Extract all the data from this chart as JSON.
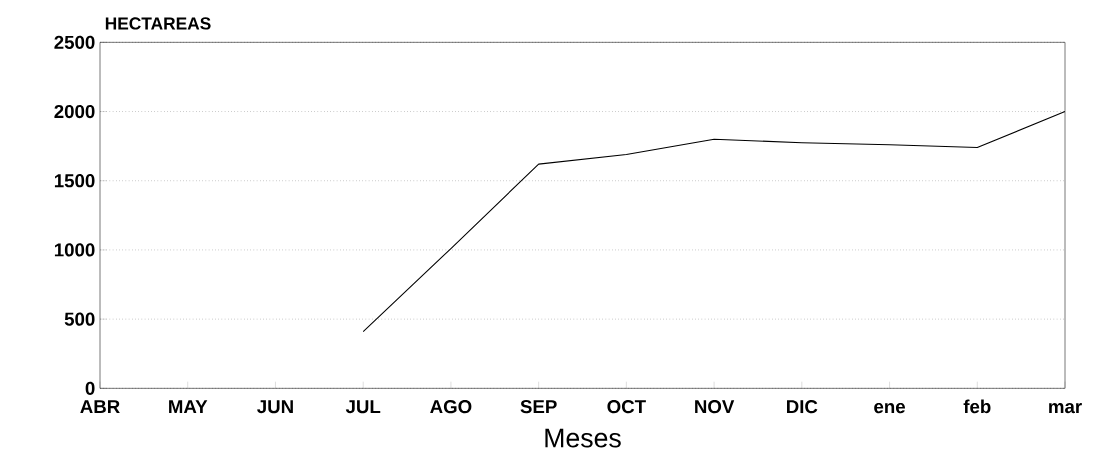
{
  "chart_data": {
    "type": "line",
    "xlabel": "Meses",
    "ylabel": "HECTAREAS",
    "categories": [
      "ABR",
      "MAY",
      "JUN",
      "JUL",
      "AGO",
      "SEP",
      "OCT",
      "NOV",
      "DIC",
      "ene",
      "feb",
      "mar"
    ],
    "values": [
      null,
      null,
      null,
      410,
      1010,
      1620,
      1690,
      1800,
      1775,
      1760,
      1740,
      2000
    ],
    "color": "#000000",
    "ylim": [
      0,
      2500
    ],
    "yticks": [
      0,
      500,
      1000,
      1500,
      2000,
      2500
    ],
    "grid": "y",
    "marker": "none",
    "line_style": "solid"
  }
}
